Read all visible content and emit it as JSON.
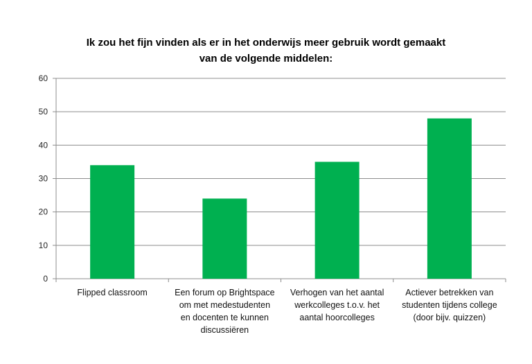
{
  "chart_data": {
    "type": "bar",
    "title_lines": [
      "Ik zou het fijn vinden als er in het onderwijs meer gebruik wordt gemaakt",
      "van de volgende middelen:"
    ],
    "categories": [
      [
        "Flipped classroom"
      ],
      [
        "Een forum op Brightspace",
        "om met medestudenten",
        "en docenten te kunnen",
        "discussiëren"
      ],
      [
        "Verhogen van het aantal",
        "werkcolleges t.o.v. het",
        "aantal hoorcolleges"
      ],
      [
        "Actiever betrekken van",
        "studenten tijdens college",
        "(door bijv. quizzen)"
      ]
    ],
    "values": [
      34,
      24,
      35,
      48
    ],
    "ylim": [
      0,
      60
    ],
    "yticks": [
      0,
      10,
      20,
      30,
      40,
      50,
      60
    ],
    "grid": true,
    "legend": "none",
    "bar_color": "#00b050",
    "xlabel": "",
    "ylabel": ""
  }
}
